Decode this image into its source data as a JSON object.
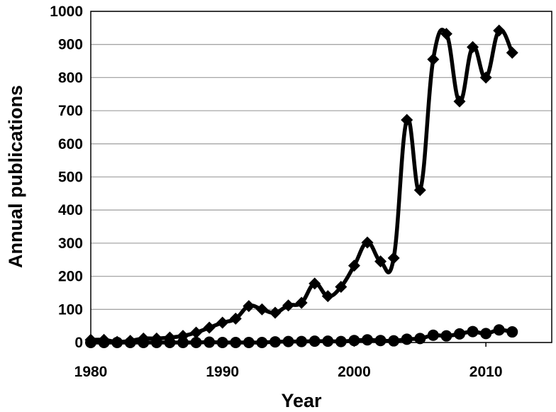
{
  "chart_data": {
    "type": "line",
    "xlabel": "Year",
    "ylabel": "Annual publications",
    "xlim": [
      1980,
      2015
    ],
    "ylim": [
      0,
      1000
    ],
    "xticks": [
      1980,
      1990,
      2000,
      2010
    ],
    "yticks": [
      0,
      100,
      200,
      300,
      400,
      500,
      600,
      700,
      800,
      900,
      1000
    ],
    "grid": "horizontal",
    "colors": {
      "series": "#000000",
      "grid": "#a6a6a6"
    },
    "series": [
      {
        "marker": "diamond",
        "x": [
          1980,
          1981,
          1982,
          1983,
          1984,
          1985,
          1986,
          1987,
          1988,
          1989,
          1990,
          1991,
          1992,
          1993,
          1994,
          1995,
          1996,
          1997,
          1998,
          1999,
          2000,
          2001,
          2002,
          2003,
          2004,
          2005,
          2006,
          2007,
          2008,
          2009,
          2010,
          2011,
          2012
        ],
        "values": [
          8,
          8,
          2,
          5,
          12,
          12,
          15,
          20,
          30,
          45,
          60,
          72,
          110,
          100,
          90,
          112,
          120,
          178,
          140,
          168,
          232,
          302,
          245,
          255,
          672,
          460,
          855,
          932,
          728,
          892,
          800,
          942,
          875
        ]
      },
      {
        "marker": "circle",
        "x": [
          1980,
          1981,
          1982,
          1983,
          1984,
          1985,
          1986,
          1987,
          1988,
          1989,
          1990,
          1991,
          1992,
          1993,
          1994,
          1995,
          1996,
          1997,
          1998,
          1999,
          2000,
          2001,
          2002,
          2003,
          2004,
          2005,
          2006,
          2007,
          2008,
          2009,
          2010,
          2011,
          2012
        ],
        "values": [
          0,
          0,
          0,
          0,
          0,
          0,
          0,
          0,
          0,
          1,
          0,
          0,
          0,
          0,
          2,
          3,
          3,
          4,
          4,
          3,
          6,
          8,
          6,
          5,
          10,
          12,
          22,
          20,
          26,
          33,
          27,
          38,
          32
        ]
      }
    ]
  }
}
